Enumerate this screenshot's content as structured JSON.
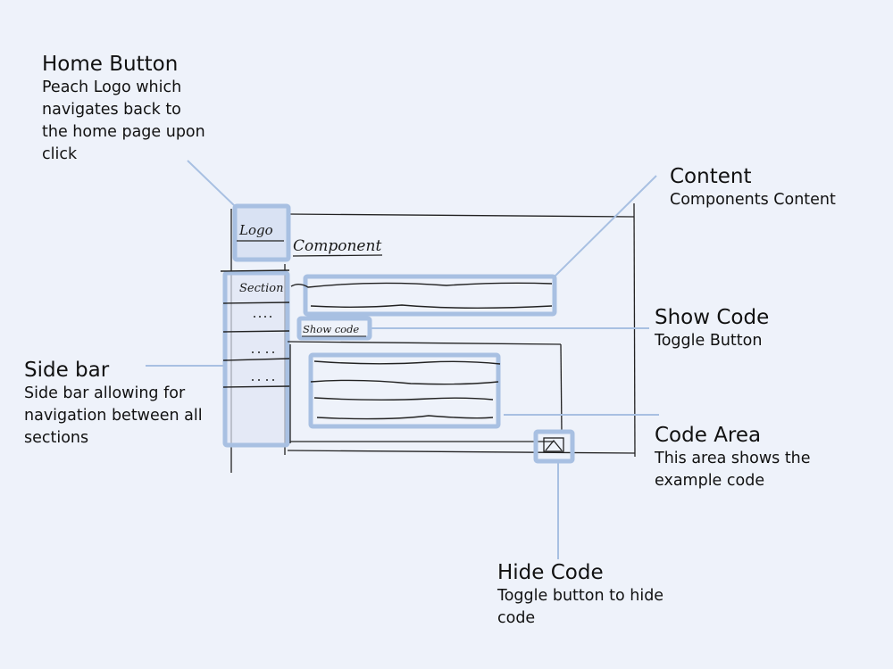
{
  "sketch": {
    "logo": "Logo",
    "component_heading": "Component",
    "section": "Section",
    "show_code": "Show code"
  },
  "annotations": {
    "home_button": {
      "title": "Home Button",
      "description": "Peach Logo which navigates back to the home page upon click"
    },
    "content": {
      "title": "Content",
      "description": "Components Content"
    },
    "show_code": {
      "title": "Show Code",
      "description": "Toggle Button"
    },
    "side_bar": {
      "title": "Side bar",
      "description": "Side bar allowing for navigation between all sections"
    },
    "code_area": {
      "title": "Code Area",
      "description": "This area shows the example code"
    },
    "hide_code": {
      "title": "Hide Code",
      "description": "Toggle button to hide code"
    }
  },
  "colors": {
    "highlight": "#a8c0e2",
    "ink": "#1a1a1a",
    "background": "#eef2fa"
  }
}
